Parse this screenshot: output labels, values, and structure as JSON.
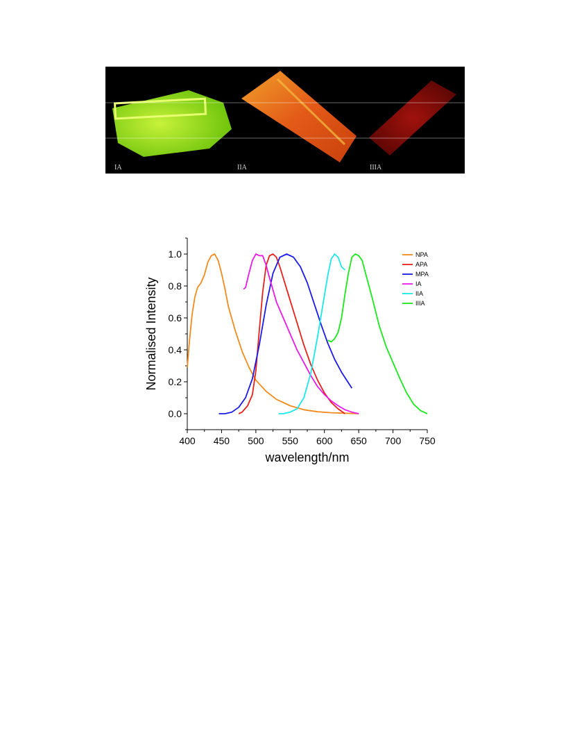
{
  "photos": {
    "labels": [
      "IA",
      "IIA",
      "IIIA"
    ],
    "colors": {
      "ia": "#9fe81a",
      "iia": "#e8641c",
      "iiia": "#8a0f0a"
    }
  },
  "chart_data": {
    "type": "line",
    "title": "",
    "xlabel": "wavelength/nm",
    "ylabel": "Normalised Intensity",
    "xlim": [
      400,
      750
    ],
    "ylim": [
      -0.1,
      1.1
    ],
    "xticks": [
      400,
      450,
      500,
      550,
      600,
      650,
      700,
      750
    ],
    "yticks": [
      0.0,
      0.2,
      0.4,
      0.6,
      0.8,
      1.0
    ],
    "ytick_labels": [
      "0.0",
      "0.2",
      "0.4",
      "0.6",
      "0.8",
      "1.0"
    ],
    "grid": false,
    "legend_position": "top-right",
    "series": [
      {
        "name": "NPA",
        "color": "#f28a1c",
        "x": [
          400,
          403,
          407,
          411,
          415,
          420,
          425,
          430,
          435,
          440,
          445,
          450,
          455,
          460,
          470,
          480,
          490,
          500,
          515,
          530,
          550,
          570,
          590,
          610,
          630,
          650
        ],
        "y": [
          0.29,
          0.45,
          0.62,
          0.73,
          0.79,
          0.82,
          0.87,
          0.95,
          0.99,
          1.0,
          0.96,
          0.88,
          0.78,
          0.67,
          0.52,
          0.39,
          0.29,
          0.21,
          0.14,
          0.09,
          0.05,
          0.025,
          0.012,
          0.006,
          0.003,
          0.0
        ]
      },
      {
        "name": "APA",
        "color": "#e8201a",
        "x": [
          475,
          480,
          488,
          495,
          500,
          505,
          510,
          515,
          520,
          525,
          530,
          535,
          540,
          550,
          560,
          570,
          580,
          590,
          600,
          610,
          620,
          630
        ],
        "y": [
          0.0,
          0.01,
          0.05,
          0.12,
          0.27,
          0.52,
          0.76,
          0.93,
          0.99,
          1.0,
          0.98,
          0.92,
          0.85,
          0.71,
          0.57,
          0.43,
          0.31,
          0.21,
          0.13,
          0.07,
          0.03,
          0.0
        ]
      },
      {
        "name": "MPA",
        "color": "#1a1ae8",
        "x": [
          446,
          455,
          465,
          475,
          485,
          495,
          505,
          515,
          525,
          535,
          545,
          555,
          565,
          575,
          585,
          595,
          605,
          615,
          625,
          640
        ],
        "y": [
          0.0,
          0.0,
          0.01,
          0.04,
          0.1,
          0.22,
          0.43,
          0.68,
          0.88,
          0.98,
          1.0,
          0.98,
          0.92,
          0.82,
          0.69,
          0.56,
          0.44,
          0.34,
          0.26,
          0.16
        ]
      },
      {
        "name": "IA",
        "color": "#e81ae8",
        "x": [
          482,
          485,
          490,
          495,
          500,
          505,
          510,
          515,
          520,
          530,
          540,
          550,
          560,
          570,
          580,
          590,
          600,
          610,
          620,
          630,
          640,
          650
        ],
        "y": [
          0.78,
          0.79,
          0.88,
          0.96,
          1.0,
          0.99,
          0.99,
          0.93,
          0.85,
          0.7,
          0.6,
          0.5,
          0.4,
          0.32,
          0.24,
          0.17,
          0.12,
          0.08,
          0.05,
          0.025,
          0.01,
          0.0
        ]
      },
      {
        "name": "IIA",
        "color": "#1ae8e8",
        "x": [
          533,
          540,
          550,
          560,
          570,
          580,
          590,
          600,
          605,
          610,
          615,
          620,
          625,
          630
        ],
        "y": [
          0.0,
          0.0,
          0.01,
          0.03,
          0.1,
          0.25,
          0.48,
          0.74,
          0.87,
          0.97,
          1.0,
          0.98,
          0.92,
          0.9
        ]
      },
      {
        "name": "IIIA",
        "color": "#1ae81a",
        "x": [
          605,
          610,
          615,
          620,
          625,
          630,
          635,
          640,
          645,
          650,
          655,
          660,
          670,
          680,
          690,
          700,
          710,
          720,
          730,
          740,
          750
        ],
        "y": [
          0.46,
          0.45,
          0.47,
          0.51,
          0.6,
          0.75,
          0.88,
          0.98,
          1.0,
          0.99,
          0.96,
          0.88,
          0.72,
          0.55,
          0.42,
          0.32,
          0.22,
          0.13,
          0.06,
          0.02,
          0.0
        ]
      }
    ]
  }
}
